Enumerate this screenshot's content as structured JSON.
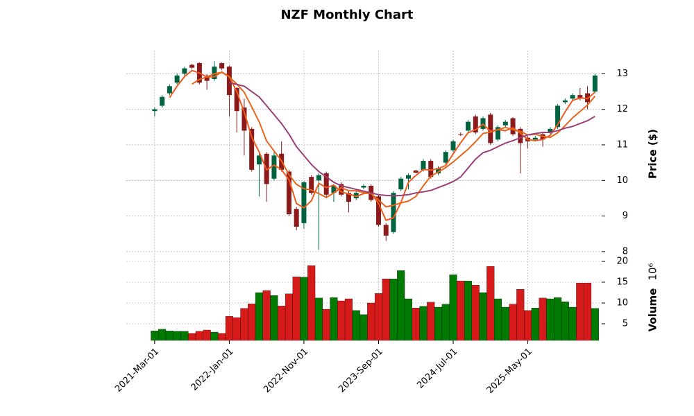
{
  "chart_data": {
    "type": "candlestick",
    "title": "NZF Monthly Chart",
    "categories": [
      "2021-Mar-01",
      null,
      null,
      null,
      null,
      null,
      null,
      null,
      null,
      null,
      "2022-Jan-01",
      null,
      null,
      null,
      null,
      null,
      null,
      null,
      null,
      null,
      "2022-Nov-01",
      null,
      null,
      null,
      null,
      null,
      null,
      null,
      null,
      null,
      "2023-Sep-01",
      null,
      null,
      null,
      null,
      null,
      null,
      null,
      null,
      null,
      "2024-Jul-01",
      null,
      null,
      null,
      null,
      null,
      null,
      null,
      null,
      null,
      "2025-May-01",
      null,
      null,
      null,
      null,
      null,
      null,
      null,
      null,
      null
    ],
    "xlim": [
      -3.8,
      59.9
    ],
    "open": [
      11.95,
      12.1,
      12.45,
      12.75,
      13.0,
      13.25,
      13.3,
      12.95,
      12.85,
      13.3,
      13.2,
      12.6,
      12.05,
      11.45,
      10.45,
      10.75,
      10.05,
      10.75,
      10.25,
      9.2,
      8.8,
      10.1,
      10.0,
      10.2,
      9.65,
      9.9,
      9.65,
      9.5,
      9.8,
      9.85,
      9.55,
      8.75,
      8.55,
      9.75,
      10.05,
      10.28,
      10.3,
      10.55,
      10.2,
      10.5,
      10.85,
      11.3,
      11.4,
      11.8,
      11.45,
      11.85,
      11.15,
      11.55,
      11.75,
      11.45,
      11.2,
      11.15,
      11.3,
      11.35,
      11.5,
      12.2,
      12.3,
      12.4,
      12.45,
      12.5
    ],
    "high": [
      12.05,
      12.4,
      12.7,
      13.0,
      13.2,
      13.28,
      13.32,
      12.98,
      13.35,
      13.32,
      13.22,
      12.62,
      12.3,
      11.5,
      10.75,
      10.8,
      10.8,
      11.1,
      10.3,
      9.25,
      9.98,
      10.15,
      10.2,
      10.25,
      9.9,
      9.95,
      9.7,
      9.7,
      9.9,
      9.9,
      9.6,
      8.8,
      9.7,
      10.1,
      10.2,
      10.3,
      10.6,
      10.6,
      10.4,
      10.85,
      11.15,
      11.35,
      11.7,
      11.85,
      11.8,
      11.9,
      11.55,
      11.7,
      11.78,
      11.5,
      11.25,
      11.25,
      11.35,
      11.5,
      12.15,
      12.3,
      12.45,
      12.6,
      12.65,
      13.0
    ],
    "low": [
      11.8,
      12.05,
      12.4,
      12.7,
      12.95,
      13.12,
      12.7,
      12.55,
      12.8,
      13.1,
      11.8,
      11.35,
      10.7,
      10.25,
      9.55,
      9.4,
      10.0,
      10.25,
      9.0,
      8.6,
      8.65,
      9.6,
      8.05,
      9.55,
      9.4,
      9.55,
      9.1,
      9.45,
      9.75,
      9.4,
      8.7,
      8.3,
      8.5,
      9.7,
      9.75,
      10.2,
      10.25,
      10.05,
      10.15,
      10.45,
      10.8,
      11.25,
      11.35,
      11.3,
      11.4,
      11.0,
      11.1,
      11.5,
      11.25,
      10.2,
      10.9,
      11.1,
      10.95,
      11.3,
      11.45,
      12.15,
      12.25,
      12.25,
      12.0,
      12.45
    ],
    "close": [
      12.0,
      12.35,
      12.65,
      12.95,
      13.15,
      13.17,
      12.75,
      12.8,
      13.2,
      13.15,
      12.4,
      11.95,
      11.4,
      10.3,
      10.7,
      9.9,
      10.7,
      10.3,
      9.05,
      8.7,
      9.95,
      9.65,
      10.15,
      9.6,
      9.85,
      9.6,
      9.4,
      9.65,
      9.85,
      9.45,
      8.75,
      8.45,
      9.65,
      10.05,
      10.15,
      10.22,
      10.55,
      10.1,
      10.35,
      10.8,
      11.1,
      11.28,
      11.65,
      11.35,
      11.75,
      11.05,
      11.5,
      11.65,
      11.3,
      11.05,
      11.1,
      11.2,
      11.15,
      11.45,
      12.1,
      12.25,
      12.4,
      12.3,
      12.2,
      12.95
    ],
    "up_color": "#006340",
    "down_color": "#8b1a1a",
    "moving_averages": [
      {
        "color": "#f05a1e",
        "values": [
          null,
          null,
          12.33,
          12.65,
          12.92,
          13.09,
          13.02,
          12.91,
          12.92,
          13.05,
          12.92,
          12.5,
          11.92,
          11.22,
          10.8,
          10.3,
          10.43,
          10.3,
          10.02,
          9.35,
          9.23,
          9.43,
          9.92,
          9.8,
          9.87,
          9.68,
          9.62,
          9.55,
          9.63,
          9.65,
          9.35,
          8.88,
          8.95,
          9.38,
          9.95,
          10.14,
          10.31,
          10.29,
          10.33,
          10.42,
          10.75,
          11.06,
          11.34,
          11.43,
          11.58,
          11.38,
          11.43,
          11.4,
          11.48,
          11.33,
          11.15,
          11.12,
          11.15,
          11.27,
          11.57,
          11.93,
          12.25,
          12.32,
          12.3,
          12.48
        ]
      },
      {
        "color": "#e8651a",
        "values": [
          null,
          null,
          null,
          null,
          null,
          12.71,
          12.84,
          12.91,
          13.0,
          13.04,
          12.91,
          12.71,
          12.48,
          12.07,
          11.65,
          11.11,
          10.83,
          10.55,
          10.16,
          9.89,
          9.77,
          9.73,
          9.63,
          9.52,
          9.65,
          9.8,
          9.71,
          9.71,
          9.66,
          9.63,
          9.45,
          9.26,
          9.3,
          9.37,
          9.42,
          9.55,
          9.85,
          10.12,
          10.24,
          10.36,
          10.52,
          10.7,
          10.88,
          11.09,
          11.32,
          11.36,
          11.43,
          11.49,
          11.43,
          11.38,
          11.28,
          11.3,
          11.24,
          11.21,
          11.34,
          11.54,
          11.76,
          11.94,
          12.12,
          12.37
        ]
      },
      {
        "color": "#9b3f7a",
        "values": [
          null,
          null,
          null,
          null,
          null,
          null,
          null,
          null,
          null,
          null,
          12.75,
          12.7,
          12.65,
          12.5,
          12.35,
          12.1,
          11.85,
          11.6,
          11.3,
          10.95,
          10.7,
          10.45,
          10.25,
          10.1,
          9.95,
          9.85,
          9.8,
          9.75,
          9.7,
          9.65,
          9.6,
          9.58,
          9.57,
          9.58,
          9.6,
          9.65,
          9.68,
          9.72,
          9.8,
          9.88,
          9.97,
          10.1,
          10.35,
          10.6,
          10.78,
          10.85,
          10.95,
          11.05,
          11.12,
          11.2,
          11.28,
          11.32,
          11.35,
          11.35,
          11.4,
          11.47,
          11.52,
          11.6,
          11.68,
          11.8
        ]
      }
    ],
    "ylabel": "Price ($)",
    "ylim": [
      7.92,
      13.65
    ],
    "yticks": [
      8,
      9,
      10,
      11,
      12,
      13
    ],
    "volume": {
      "values": [
        3.3,
        3.7,
        3.3,
        3.2,
        3.2,
        2.7,
        3.2,
        3.5,
        3.0,
        2.7,
        6.8,
        6.5,
        8.7,
        9.8,
        12.5,
        13.0,
        11.8,
        9.3,
        12.2,
        16.3,
        16.2,
        19.0,
        11.2,
        8.5,
        11.3,
        10.5,
        11.0,
        8.2,
        7.2,
        10.0,
        12.3,
        15.8,
        15.8,
        17.8,
        11.0,
        8.8,
        9.2,
        10.2,
        9.0,
        9.7,
        16.8,
        15.3,
        15.3,
        14.3,
        12.5,
        18.8,
        11.0,
        9.0,
        9.7,
        13.3,
        8.2,
        8.8,
        11.2,
        11.0,
        11.3,
        10.3,
        9.0,
        14.8,
        14.8,
        8.7
      ],
      "up_color": "#007a00",
      "down_color": "#d61a1a",
      "ylabel": "Volume",
      "scale_label": "10⁶",
      "ylim": [
        1.0,
        20.5
      ],
      "yticks": [
        5,
        10,
        15,
        20
      ]
    },
    "grid": true
  }
}
